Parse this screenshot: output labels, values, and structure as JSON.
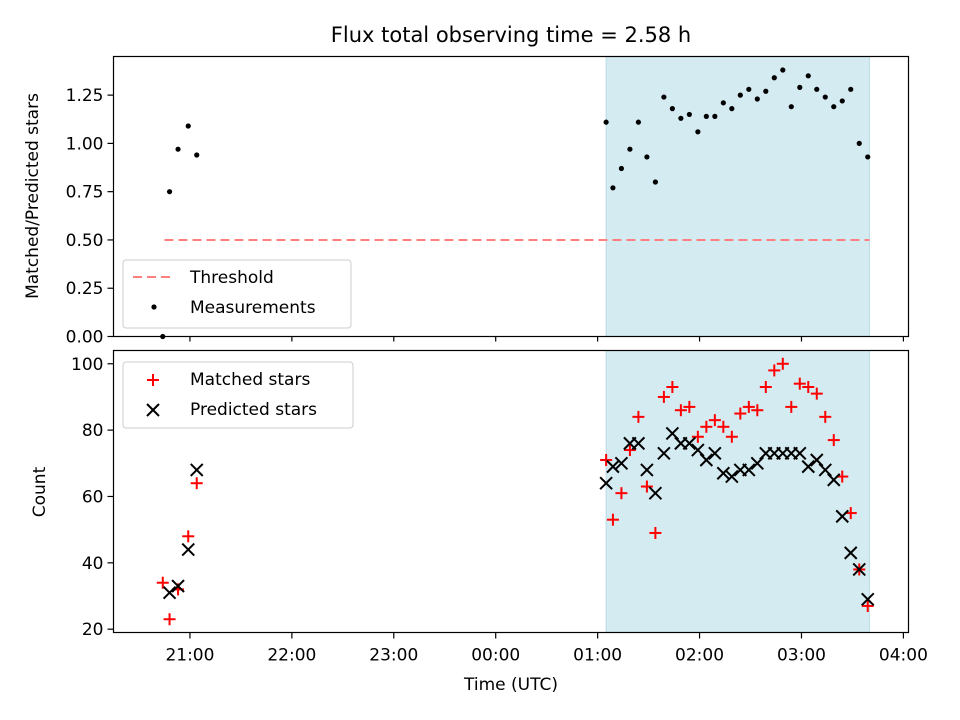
{
  "title": "Flux total observing time = 2.58 h",
  "chart_data": [
    {
      "type": "scatter",
      "panel": "top",
      "ylabel": "Matched/Predicted stars",
      "xlabel": "",
      "ylim": [
        0,
        1.45
      ],
      "yticks": [
        0.0,
        0.25,
        0.5,
        0.75,
        1.0,
        1.25
      ],
      "ytick_labels": [
        "0.00",
        "0.25",
        "0.50",
        "0.75",
        "1.00",
        "1.25"
      ],
      "threshold": {
        "name": "Threshold",
        "value": 0.5,
        "x_start": "20:45",
        "x_end": "03:40",
        "color": "#ff7f7f"
      },
      "shaded_region": {
        "x_start": "01:05",
        "x_end": "03:40",
        "color": "#d4ebf1"
      },
      "legend_position": "lower-left",
      "legend": [
        {
          "label": "Threshold"
        },
        {
          "label": "Measurements"
        }
      ],
      "series": [
        {
          "name": "Measurements",
          "marker": "dot",
          "color": "#000000",
          "points": [
            [
              "20:44",
              0.0
            ],
            [
              "20:48",
              0.75
            ],
            [
              "20:53",
              0.97
            ],
            [
              "20:59",
              1.09
            ],
            [
              "21:04",
              0.94
            ],
            [
              "01:05",
              1.11
            ],
            [
              "01:09",
              0.77
            ],
            [
              "01:14",
              0.87
            ],
            [
              "01:19",
              0.97
            ],
            [
              "01:24",
              1.11
            ],
            [
              "01:29",
              0.93
            ],
            [
              "01:34",
              0.8
            ],
            [
              "01:39",
              1.24
            ],
            [
              "01:44",
              1.18
            ],
            [
              "01:49",
              1.13
            ],
            [
              "01:54",
              1.15
            ],
            [
              "01:59",
              1.06
            ],
            [
              "02:04",
              1.14
            ],
            [
              "02:09",
              1.14
            ],
            [
              "02:14",
              1.21
            ],
            [
              "02:19",
              1.18
            ],
            [
              "02:24",
              1.25
            ],
            [
              "02:29",
              1.28
            ],
            [
              "02:34",
              1.23
            ],
            [
              "02:39",
              1.27
            ],
            [
              "02:44",
              1.34
            ],
            [
              "02:49",
              1.38
            ],
            [
              "02:54",
              1.19
            ],
            [
              "02:59",
              1.29
            ],
            [
              "03:04",
              1.35
            ],
            [
              "03:09",
              1.28
            ],
            [
              "03:14",
              1.24
            ],
            [
              "03:19",
              1.19
            ],
            [
              "03:24",
              1.22
            ],
            [
              "03:29",
              1.28
            ],
            [
              "03:34",
              1.0
            ],
            [
              "03:39",
              0.93
            ]
          ]
        }
      ]
    },
    {
      "type": "scatter",
      "panel": "bottom",
      "ylabel": "Count",
      "xlabel": "Time (UTC)",
      "ylim": [
        19,
        104
      ],
      "yticks": [
        20,
        40,
        60,
        80,
        100
      ],
      "xticks": [
        "21:00",
        "22:00",
        "23:00",
        "00:00",
        "01:00",
        "02:00",
        "03:00",
        "04:00"
      ],
      "shaded_region": {
        "x_start": "01:05",
        "x_end": "03:40",
        "color": "#d4ebf1"
      },
      "legend_position": "upper-left",
      "legend": [
        {
          "label": "Matched stars"
        },
        {
          "label": "Predicted stars"
        }
      ],
      "series": [
        {
          "name": "Matched stars",
          "marker": "plus",
          "color": "#ff0000",
          "points": [
            [
              "20:44",
              34
            ],
            [
              "20:48",
              23
            ],
            [
              "20:53",
              32
            ],
            [
              "20:59",
              48
            ],
            [
              "21:04",
              64
            ],
            [
              "01:05",
              71
            ],
            [
              "01:09",
              53
            ],
            [
              "01:14",
              61
            ],
            [
              "01:19",
              74
            ],
            [
              "01:24",
              84
            ],
            [
              "01:29",
              63
            ],
            [
              "01:34",
              49
            ],
            [
              "01:39",
              90
            ],
            [
              "01:44",
              93
            ],
            [
              "01:49",
              86
            ],
            [
              "01:54",
              87
            ],
            [
              "01:59",
              78
            ],
            [
              "02:04",
              81
            ],
            [
              "02:09",
              83
            ],
            [
              "02:14",
              81
            ],
            [
              "02:19",
              78
            ],
            [
              "02:24",
              85
            ],
            [
              "02:29",
              87
            ],
            [
              "02:34",
              86
            ],
            [
              "02:39",
              93
            ],
            [
              "02:44",
              98
            ],
            [
              "02:49",
              100
            ],
            [
              "02:54",
              87
            ],
            [
              "02:59",
              94
            ],
            [
              "03:04",
              93
            ],
            [
              "03:09",
              91
            ],
            [
              "03:14",
              84
            ],
            [
              "03:19",
              77
            ],
            [
              "03:24",
              66
            ],
            [
              "03:29",
              55
            ],
            [
              "03:34",
              38
            ],
            [
              "03:39",
              27
            ]
          ]
        },
        {
          "name": "Predicted stars",
          "marker": "x",
          "color": "#000000",
          "points": [
            [
              "20:48",
              31
            ],
            [
              "20:53",
              33
            ],
            [
              "20:59",
              44
            ],
            [
              "21:04",
              68
            ],
            [
              "01:05",
              64
            ],
            [
              "01:09",
              69
            ],
            [
              "01:14",
              70
            ],
            [
              "01:19",
              76
            ],
            [
              "01:24",
              76
            ],
            [
              "01:29",
              68
            ],
            [
              "01:34",
              61
            ],
            [
              "01:39",
              73
            ],
            [
              "01:44",
              79
            ],
            [
              "01:49",
              76
            ],
            [
              "01:54",
              76
            ],
            [
              "01:59",
              74
            ],
            [
              "02:04",
              71
            ],
            [
              "02:09",
              73
            ],
            [
              "02:14",
              67
            ],
            [
              "02:19",
              66
            ],
            [
              "02:24",
              68
            ],
            [
              "02:29",
              68
            ],
            [
              "02:34",
              70
            ],
            [
              "02:39",
              73
            ],
            [
              "02:44",
              73
            ],
            [
              "02:49",
              73
            ],
            [
              "02:54",
              73
            ],
            [
              "02:59",
              73
            ],
            [
              "03:04",
              69
            ],
            [
              "03:09",
              71
            ],
            [
              "03:14",
              68
            ],
            [
              "03:19",
              65
            ],
            [
              "03:24",
              54
            ],
            [
              "03:29",
              43
            ],
            [
              "03:34",
              38
            ],
            [
              "03:39",
              29
            ]
          ]
        }
      ]
    }
  ]
}
